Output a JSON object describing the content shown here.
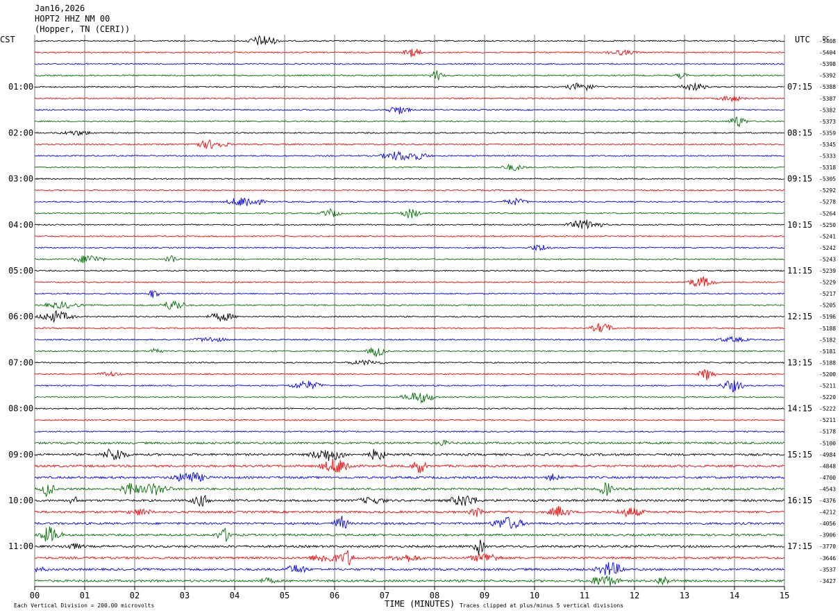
{
  "header": {
    "date": "Jan16,2026",
    "station": "HOPT2 HHZ NM 00",
    "location": "(Hopper, TN (CERI))"
  },
  "left_tz": "CST",
  "right_tz": "UTC",
  "dc_label": "DC",
  "footer": {
    "scale_note": "Each Vertical Division =  200.00 microvolts",
    "xlabel": "TIME (MINUTES)",
    "clip_note": "Traces clipped at plus/minus 5 vertical divisions"
  },
  "chart_data": {
    "type": "line",
    "x_ticks": [
      "00",
      "01",
      "02",
      "03",
      "04",
      "05",
      "06",
      "07",
      "08",
      "09",
      "10",
      "11",
      "12",
      "13",
      "14",
      "15"
    ],
    "xlim": [
      0,
      15
    ],
    "colors": [
      "#000000",
      "#ff0000",
      "#0000ff",
      "#007000"
    ],
    "left_hours": [
      "01:00",
      "02:00",
      "03:00",
      "04:00",
      "05:00",
      "06:00",
      "07:00",
      "08:00",
      "09:00",
      "10:00",
      "11:00"
    ],
    "right_hours": [
      "07:15",
      "08:15",
      "09:15",
      "10:15",
      "11:15",
      "12:15",
      "13:15",
      "14:15",
      "15:15",
      "16:15",
      "17:15"
    ],
    "dc_offsets": [
      "-5408",
      "-5404",
      "-5398",
      "-5392",
      "-5388",
      "-5387",
      "-5382",
      "-5373",
      "-5359",
      "-5345",
      "-5333",
      "-5318",
      "-5305",
      "-5292",
      "-5278",
      "-5264",
      "-5250",
      "-5241",
      "-5242",
      "-5243",
      "-5239",
      "-5229",
      "-5217",
      "-5205",
      "-5196",
      "-5188",
      "-5182",
      "-5181",
      "-5188",
      "-5200",
      "-5211",
      "-5220",
      "-5222",
      "-5211",
      "-5178",
      "-5100",
      "-4984",
      "-4848",
      "-4700",
      "-4543",
      "-4376",
      "-4212",
      "-4056",
      "-3906",
      "-3770",
      "-3646",
      "-3537",
      "-3427"
    ],
    "rows": 48,
    "grid": "vertical"
  }
}
